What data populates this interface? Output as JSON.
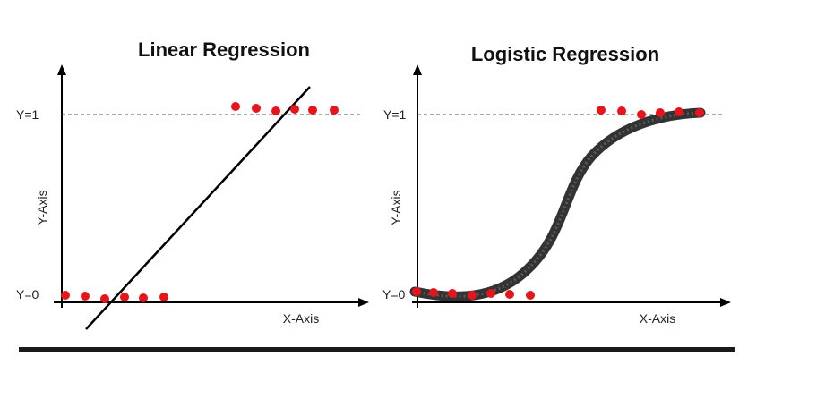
{
  "colors": {
    "point": "#e8141b",
    "line": "#000000",
    "curve": "#333333",
    "axis": "#000000",
    "bar": "#1a1a1a"
  },
  "left": {
    "title": "Linear Regression",
    "xlabel": "X-Axis",
    "ylabel": "Y-Axis",
    "y1_label": "Y=1",
    "y0_label": "Y=0"
  },
  "right": {
    "title": "Logistic Regression",
    "xlabel": "X-Axis",
    "ylabel": "Y-Axis",
    "y1_label": "Y=1",
    "y0_label": "Y=0"
  }
}
